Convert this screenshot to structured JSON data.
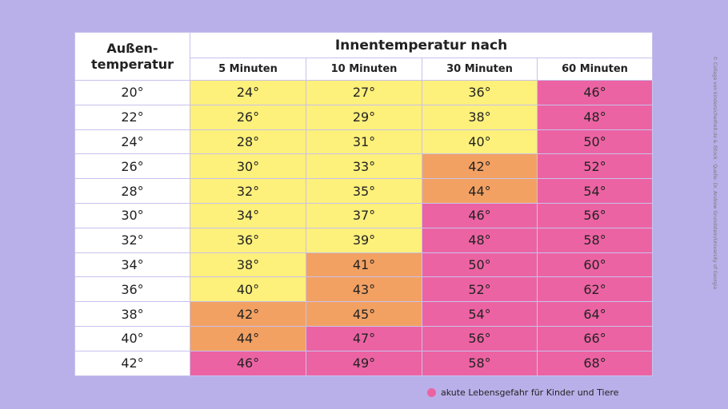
{
  "header": {
    "first_column": "Außen-\ntemperatur",
    "group_title": "Innentemperatur nach",
    "columns": [
      "5 Minuten",
      "10 Minuten",
      "30 Minuten",
      "60 Minuten"
    ]
  },
  "table": {
    "rows": [
      [
        "20°",
        "24°",
        "27°",
        "36°",
        "46°"
      ],
      [
        "22°",
        "26°",
        "29°",
        "38°",
        "48°"
      ],
      [
        "24°",
        "28°",
        "31°",
        "40°",
        "50°"
      ],
      [
        "26°",
        "30°",
        "33°",
        "42°",
        "52°"
      ],
      [
        "28°",
        "32°",
        "35°",
        "44°",
        "54°"
      ],
      [
        "30°",
        "34°",
        "37°",
        "46°",
        "56°"
      ],
      [
        "32°",
        "36°",
        "39°",
        "48°",
        "58°"
      ],
      [
        "34°",
        "38°",
        "41°",
        "50°",
        "60°"
      ],
      [
        "36°",
        "40°",
        "43°",
        "52°",
        "62°"
      ],
      [
        "38°",
        "42°",
        "45°",
        "54°",
        "64°"
      ],
      [
        "40°",
        "44°",
        "47°",
        "56°",
        "66°"
      ],
      [
        "42°",
        "46°",
        "49°",
        "58°",
        "68°"
      ]
    ],
    "cell_colors": [
      [
        "#fdf07b",
        "#fdf07b",
        "#fdf07b",
        "#ec63a3"
      ],
      [
        "#fdf07b",
        "#fdf07b",
        "#fdf07b",
        "#ec63a3"
      ],
      [
        "#fdf07b",
        "#fdf07b",
        "#fdf07b",
        "#ec63a3"
      ],
      [
        "#fdf07b",
        "#fdf07b",
        "#f2a163",
        "#ec63a3"
      ],
      [
        "#fdf07b",
        "#fdf07b",
        "#f2a163",
        "#ec63a3"
      ],
      [
        "#fdf07b",
        "#fdf07b",
        "#ec63a3",
        "#ec63a3"
      ],
      [
        "#fdf07b",
        "#fdf07b",
        "#ec63a3",
        "#ec63a3"
      ],
      [
        "#fdf07b",
        "#f2a163",
        "#ec63a3",
        "#ec63a3"
      ],
      [
        "#fdf07b",
        "#f2a163",
        "#ec63a3",
        "#ec63a3"
      ],
      [
        "#f2a163",
        "#f2a163",
        "#ec63a3",
        "#ec63a3"
      ],
      [
        "#f2a163",
        "#ec63a3",
        "#ec63a3",
        "#ec63a3"
      ],
      [
        "#ec63a3",
        "#ec63a3",
        "#ec63a3",
        "#ec63a3"
      ]
    ]
  },
  "legend": {
    "color": "#ec63a3",
    "label": "akute Lebensgefahr für Kinder und Tiere"
  },
  "credit": "© Collage von kindersicherheit.de & iStock · Quelle: Dr. Andrew Grundstein/University of Georgia"
}
